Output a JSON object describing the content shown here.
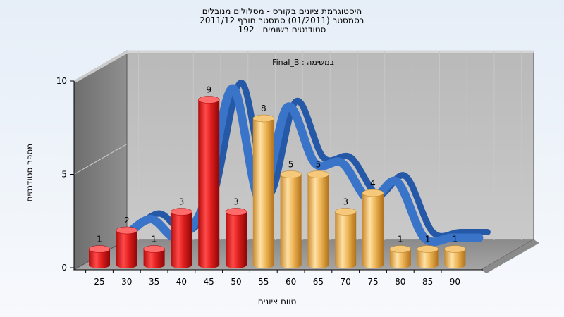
{
  "title": {
    "line1": "היסטוגרמת ציונים בקורס - מסלולים מנובלים",
    "line2": "בסמסטר  (01/2011)  סמסטר חורף 2011/12",
    "line3": "סטודנטים רשומים - 192"
  },
  "chart_data": {
    "type": "bar",
    "title": "Final_B : במשימה",
    "xlabel": "טווח ציונים",
    "ylabel": "מספר סטודנטים",
    "categories": [
      "25",
      "30",
      "35",
      "40",
      "45",
      "50",
      "55",
      "60",
      "65",
      "70",
      "75",
      "80",
      "85",
      "90"
    ],
    "values": [
      1,
      2,
      1,
      3,
      9,
      3,
      8,
      5,
      5,
      3,
      4,
      1,
      1,
      1
    ],
    "data_labels": [
      "1",
      "2",
      "1",
      "3",
      "9",
      "3",
      "8",
      "5",
      "5",
      "3",
      "4",
      "1",
      "1",
      "1"
    ],
    "ylim": [
      0,
      10
    ],
    "y_ticks": [
      "0",
      "5",
      "10"
    ],
    "bar_colors": [
      "red",
      "red",
      "red",
      "red",
      "red",
      "red",
      "orange",
      "orange",
      "orange",
      "orange",
      "orange",
      "orange",
      "orange",
      "orange"
    ],
    "curve_color": "#3a74c9",
    "grid": true,
    "legend": "none"
  }
}
